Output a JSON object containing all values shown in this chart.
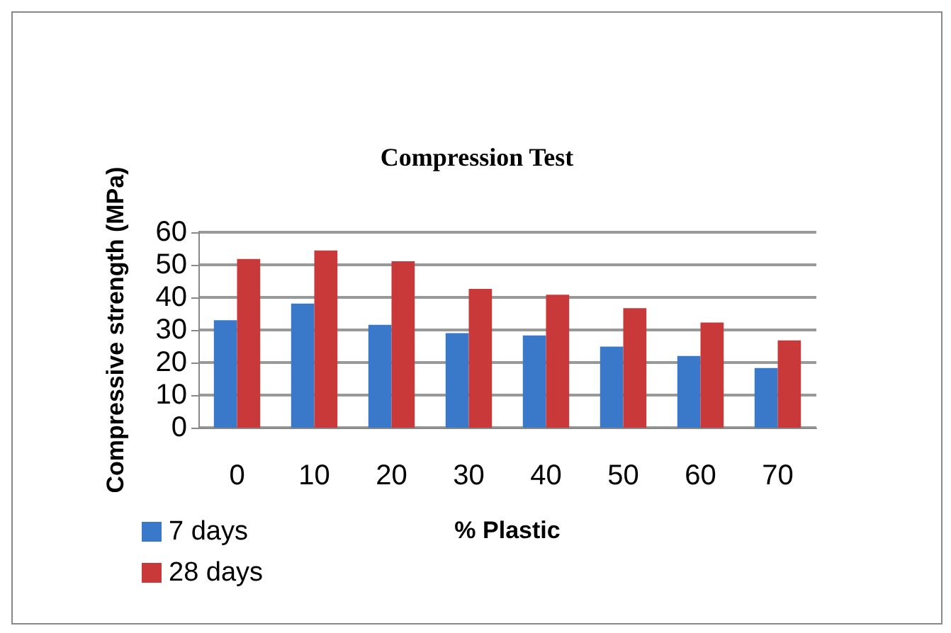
{
  "chart_data": {
    "type": "bar",
    "title": "Compression Test",
    "xlabel": "% Plastic",
    "ylabel": "Compressive strength (MPa)",
    "categories": [
      "0",
      "10",
      "20",
      "30",
      "40",
      "50",
      "60",
      "70"
    ],
    "series": [
      {
        "name": "7 days",
        "color": "#3a78c9",
        "values": [
          33,
          38.1,
          31.6,
          29,
          28.3,
          24.9,
          22,
          18.3
        ]
      },
      {
        "name": "28 days",
        "color": "#c9393a",
        "values": [
          51.8,
          54.4,
          51.1,
          42.6,
          40.8,
          36.7,
          32.3,
          26.8
        ]
      }
    ],
    "ylim": [
      0,
      60
    ],
    "yticks": [
      0,
      10,
      20,
      30,
      40,
      50,
      60
    ],
    "grid": "y",
    "legend": "bottom left"
  }
}
